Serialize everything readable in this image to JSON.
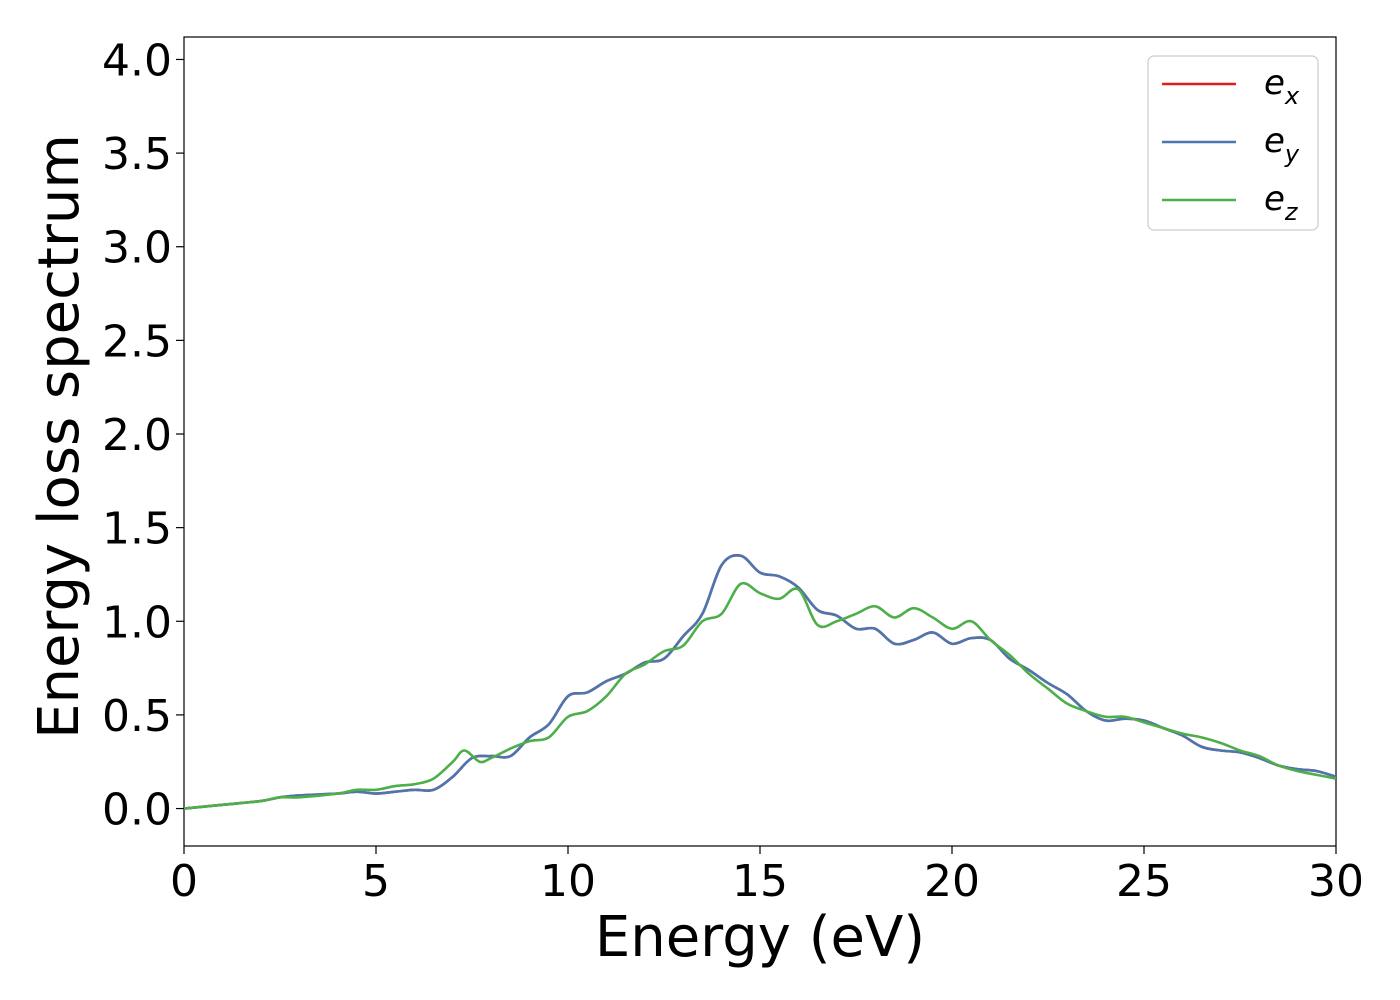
{
  "chart_data": {
    "type": "line",
    "title": "",
    "xlabel": "Energy (eV)",
    "ylabel": "Energy loss spectrum",
    "xlim": [
      0,
      30
    ],
    "ylim": [
      -0.2,
      4.12
    ],
    "xticks": [
      0,
      5,
      10,
      15,
      20,
      25,
      30
    ],
    "yticks": [
      0.0,
      0.5,
      1.0,
      1.5,
      2.0,
      2.5,
      3.0,
      3.5,
      4.0
    ],
    "xtick_labels": [
      "0",
      "5",
      "10",
      "15",
      "20",
      "25",
      "30"
    ],
    "ytick_labels": [
      "0.0",
      "0.5",
      "1.0",
      "1.5",
      "2.0",
      "2.5",
      "3.0",
      "3.5",
      "4.0"
    ],
    "grid": false,
    "legend_position": "top-right",
    "series": [
      {
        "name": "e",
        "subscript": "x",
        "color": "#e41a1c",
        "x": [
          0,
          1,
          2,
          2.5,
          3,
          4,
          4.5,
          5,
          5.5,
          6,
          6.5,
          7,
          7.5,
          8,
          8.5,
          9,
          9.5,
          10,
          10.5,
          11,
          11.5,
          12,
          12.5,
          13,
          13.5,
          14,
          14.5,
          15,
          15.5,
          16,
          16.5,
          17,
          17.5,
          18,
          18.5,
          19,
          19.5,
          20,
          20.5,
          21,
          21.5,
          22,
          22.5,
          23,
          23.5,
          24,
          24.5,
          25,
          25.5,
          26,
          26.5,
          27,
          27.5,
          28,
          28.5,
          29,
          29.5,
          30
        ],
        "y": [
          0.0,
          0.02,
          0.04,
          0.06,
          0.07,
          0.08,
          0.09,
          0.08,
          0.09,
          0.1,
          0.1,
          0.17,
          0.27,
          0.28,
          0.28,
          0.38,
          0.45,
          0.6,
          0.62,
          0.68,
          0.72,
          0.78,
          0.8,
          0.92,
          1.04,
          1.3,
          1.35,
          1.26,
          1.24,
          1.18,
          1.06,
          1.03,
          0.96,
          0.96,
          0.88,
          0.9,
          0.94,
          0.88,
          0.91,
          0.9,
          0.8,
          0.74,
          0.67,
          0.61,
          0.52,
          0.47,
          0.48,
          0.47,
          0.43,
          0.39,
          0.33,
          0.31,
          0.3,
          0.27,
          0.23,
          0.21,
          0.2,
          0.17
        ]
      },
      {
        "name": "e",
        "subscript": "y",
        "color": "#4a77b0",
        "x": [
          0,
          1,
          2,
          2.5,
          3,
          4,
          4.5,
          5,
          5.5,
          6,
          6.5,
          7,
          7.5,
          8,
          8.5,
          9,
          9.5,
          10,
          10.5,
          11,
          11.5,
          12,
          12.5,
          13,
          13.5,
          14,
          14.5,
          15,
          15.5,
          16,
          16.5,
          17,
          17.5,
          18,
          18.5,
          19,
          19.5,
          20,
          20.5,
          21,
          21.5,
          22,
          22.5,
          23,
          23.5,
          24,
          24.5,
          25,
          25.5,
          26,
          26.5,
          27,
          27.5,
          28,
          28.5,
          29,
          29.5,
          30
        ],
        "y": [
          0.0,
          0.02,
          0.04,
          0.06,
          0.07,
          0.08,
          0.09,
          0.08,
          0.09,
          0.1,
          0.1,
          0.17,
          0.27,
          0.28,
          0.28,
          0.38,
          0.45,
          0.6,
          0.62,
          0.68,
          0.72,
          0.78,
          0.8,
          0.92,
          1.04,
          1.3,
          1.35,
          1.26,
          1.24,
          1.18,
          1.06,
          1.03,
          0.96,
          0.96,
          0.88,
          0.9,
          0.94,
          0.88,
          0.91,
          0.9,
          0.8,
          0.74,
          0.67,
          0.61,
          0.52,
          0.47,
          0.48,
          0.47,
          0.43,
          0.39,
          0.33,
          0.31,
          0.3,
          0.27,
          0.23,
          0.21,
          0.2,
          0.17
        ]
      },
      {
        "name": "e",
        "subscript": "z",
        "color": "#4daf4a",
        "x": [
          0,
          1,
          2,
          2.5,
          3,
          4,
          4.5,
          5,
          5.5,
          6,
          6.5,
          7,
          7.3,
          7.7,
          8,
          8.5,
          9,
          9.5,
          10,
          10.5,
          11,
          11.5,
          12,
          12.5,
          13,
          13.5,
          14,
          14.5,
          15,
          15.5,
          16,
          16.5,
          17,
          17.5,
          18,
          18.5,
          19,
          19.5,
          20,
          20.5,
          21,
          21.5,
          22,
          22.5,
          23,
          23.5,
          24,
          24.5,
          25,
          25.5,
          26,
          26.5,
          27,
          27.5,
          28,
          28.5,
          29,
          29.5,
          30
        ],
        "y": [
          0.0,
          0.02,
          0.04,
          0.06,
          0.06,
          0.08,
          0.1,
          0.1,
          0.12,
          0.13,
          0.16,
          0.25,
          0.31,
          0.25,
          0.27,
          0.32,
          0.36,
          0.38,
          0.49,
          0.52,
          0.6,
          0.72,
          0.77,
          0.84,
          0.87,
          1.0,
          1.04,
          1.2,
          1.15,
          1.12,
          1.17,
          0.98,
          1.0,
          1.04,
          1.08,
          1.02,
          1.07,
          1.02,
          0.96,
          1.0,
          0.9,
          0.82,
          0.72,
          0.64,
          0.56,
          0.52,
          0.49,
          0.49,
          0.46,
          0.43,
          0.4,
          0.38,
          0.35,
          0.31,
          0.28,
          0.23,
          0.2,
          0.18,
          0.16
        ]
      }
    ]
  }
}
